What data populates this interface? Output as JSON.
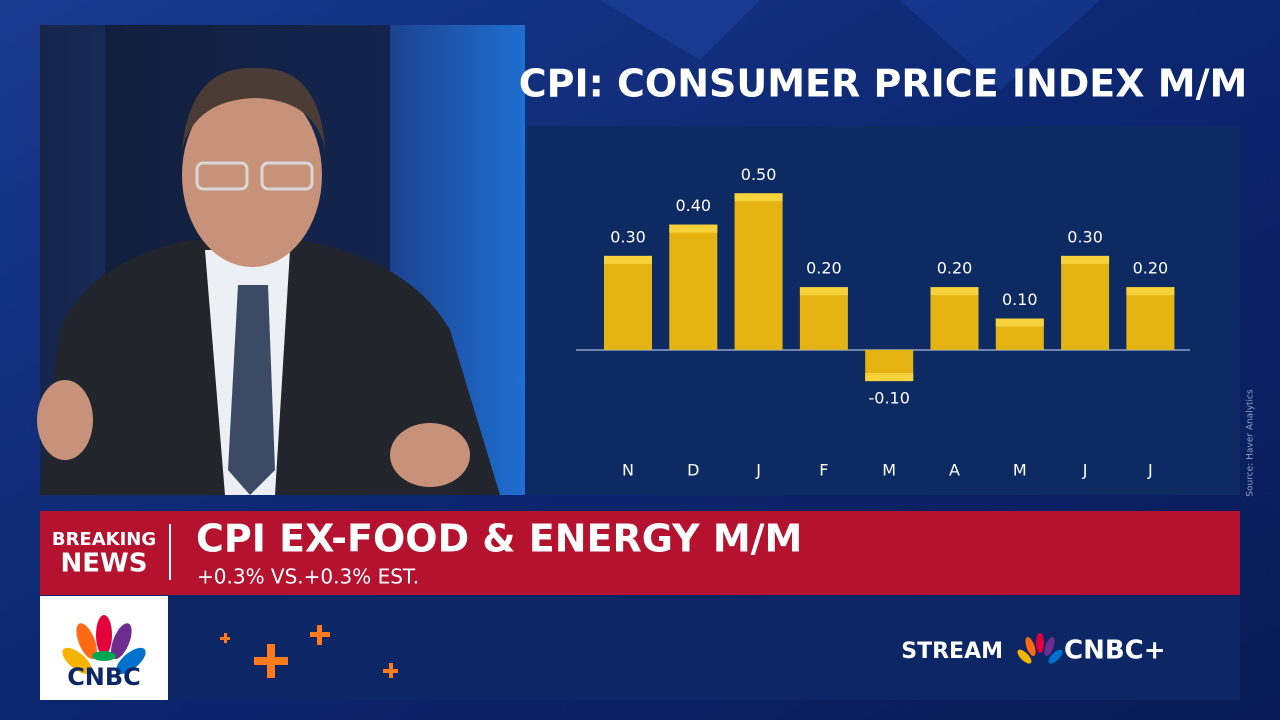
{
  "chart_data": {
    "type": "bar",
    "title": "CPI: CONSUMER PRICE INDEX M/M",
    "categories": [
      "N",
      "D",
      "J",
      "F",
      "M",
      "A",
      "M",
      "J",
      "J"
    ],
    "values": [
      0.3,
      0.4,
      0.5,
      0.2,
      -0.1,
      0.2,
      0.1,
      0.3,
      0.2
    ],
    "value_labels": [
      "0.30",
      "0.40",
      "0.50",
      "0.20",
      "-0.10",
      "0.20",
      "0.10",
      "0.30",
      "0.20"
    ],
    "color": "#e5b412",
    "ylim": [
      -0.4,
      0.6
    ],
    "source": "Source: Haver Analytics"
  },
  "lower_third": {
    "tag": [
      "BREAKING",
      "NEWS"
    ],
    "headline": "CPI EX-FOOD & ENERGY M/M",
    "subline": "+0.3% VS.+0.3% EST."
  },
  "footer": {
    "logo": "CNBC",
    "stream": "STREAM",
    "brand": "CNBC+"
  }
}
